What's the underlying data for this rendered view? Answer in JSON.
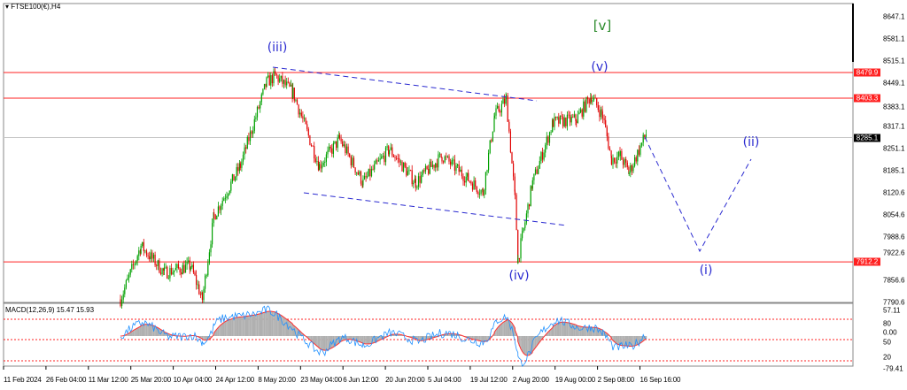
{
  "header": {
    "symbol_title": "FTSE100(€),H4",
    "collapse_icon": "triangle-down-icon"
  },
  "macd": {
    "label": "MACD(12,26,9) 15.47 15.93",
    "axis": [
      "57.11",
      "80",
      "0.00",
      "50",
      "20",
      "-79.41"
    ]
  },
  "price_axis": [
    "8647.1",
    "8581.1",
    "8515.1",
    "8449.1",
    "8383.1",
    "8317.1",
    "8251.1",
    "8185.1",
    "8120.6",
    "8054.6",
    "7988.6",
    "7922.6",
    "7856.6",
    "7790.6"
  ],
  "price_tags": [
    {
      "value": "8479.9",
      "color": "#ff2020"
    },
    {
      "value": "8403.3",
      "color": "#ff2020"
    },
    {
      "value": "8285.1",
      "color": "#000000"
    },
    {
      "value": "7912.2",
      "color": "#ff2020"
    }
  ],
  "time_axis": [
    "11 Feb 2024",
    "26 Feb 04:00",
    "11 Mar 12:00",
    "25 Mar 20:00",
    "10 Apr 04:00",
    "24 Apr 12:00",
    "8 May 20:00",
    "23 May 04:00",
    "6 Jun 12:00",
    "20 Jun 20:00",
    "5 Jul 04:00",
    "19 Jul 12:00",
    "2 Aug 20:00",
    "19 Aug 00:00",
    "2 Sep 08:00",
    "16 Sep 16:00"
  ],
  "waves": {
    "iii": "(iii)",
    "v_major": "[v]",
    "v": "(v)",
    "iv": "(iv)",
    "i": "(i)",
    "ii": "(ii)"
  },
  "colors": {
    "bull": "#00a000",
    "bear": "#e00000",
    "level": "#ff2020",
    "wave": "#2a2ad0",
    "wave_major": "#2a8a2a",
    "macd_line": "#1e90ff",
    "signal": "#ff3030",
    "hist": "#b0b0b0"
  },
  "chart_data": {
    "type": "candlestick",
    "symbol": "FTSE100(€)",
    "timeframe": "H4",
    "ylim": [
      7790.6,
      8647.1
    ],
    "levels": [
      8479.9,
      8403.3,
      8285.1,
      7912.2
    ],
    "price_path": [
      [
        "2024-03-22",
        7800
      ],
      [
        "2024-03-29",
        7960
      ],
      [
        "2024-04-06",
        7880
      ],
      [
        "2024-04-15",
        7900
      ],
      [
        "2024-04-19",
        7800
      ],
      [
        "2024-04-23",
        8050
      ],
      [
        "2024-05-02",
        8200
      ],
      [
        "2024-05-11",
        8450
      ],
      [
        "2024-05-14",
        8470
      ],
      [
        "2024-05-20",
        8420
      ],
      [
        "2024-05-29",
        8200
      ],
      [
        "2024-06-05",
        8280
      ],
      [
        "2024-06-13",
        8150
      ],
      [
        "2024-06-22",
        8250
      ],
      [
        "2024-07-01",
        8150
      ],
      [
        "2024-07-10",
        8230
      ],
      [
        "2024-07-19",
        8160
      ],
      [
        "2024-07-24",
        8120
      ],
      [
        "2024-07-28",
        8350
      ],
      [
        "2024-08-01",
        8400
      ],
      [
        "2024-08-04",
        8100
      ],
      [
        "2024-08-05",
        7920
      ],
      [
        "2024-08-10",
        8150
      ],
      [
        "2024-08-17",
        8330
      ],
      [
        "2024-08-25",
        8340
      ],
      [
        "2024-08-30",
        8410
      ],
      [
        "2024-09-03",
        8350
      ],
      [
        "2024-09-06",
        8220
      ],
      [
        "2024-09-09",
        8230
      ],
      [
        "2024-09-12",
        8180
      ],
      [
        "2024-09-18",
        8300
      ]
    ]
  }
}
